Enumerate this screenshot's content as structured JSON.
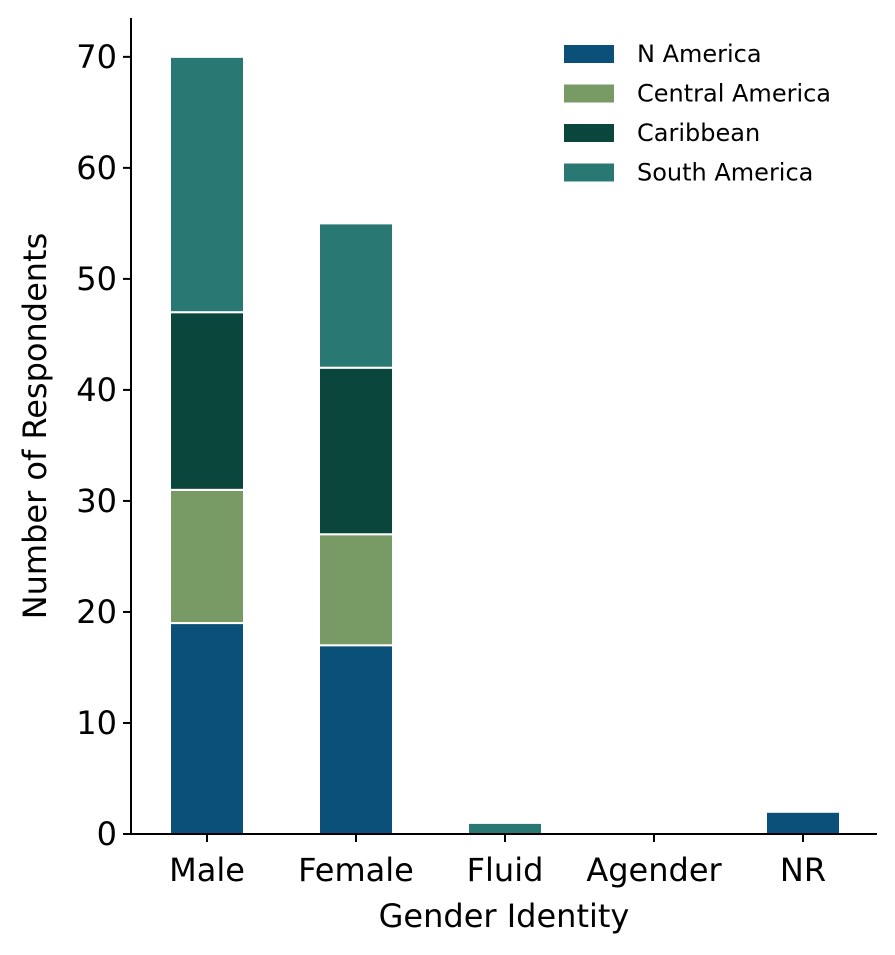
{
  "chart_data": {
    "type": "bar",
    "stacked": true,
    "xlabel": "Gender Identity",
    "ylabel": "Number of Respondents",
    "categories": [
      "Male",
      "Female",
      "Fluid",
      "Agender",
      "NR"
    ],
    "ylim": [
      0,
      73.5
    ],
    "yticks": [
      0,
      10,
      20,
      30,
      40,
      50,
      60,
      70
    ],
    "grid": false,
    "legend_position": "top-right",
    "series": [
      {
        "name": "N America",
        "color": "#0a5078",
        "values": [
          19,
          17,
          0,
          0,
          2
        ]
      },
      {
        "name": "Central America",
        "color": "#789a64",
        "values": [
          12,
          10,
          0,
          0,
          0
        ]
      },
      {
        "name": "Caribbean",
        "color": "#0a463c",
        "values": [
          16,
          15,
          0,
          0,
          0
        ]
      },
      {
        "name": "South America",
        "color": "#2a7874",
        "values": [
          23,
          13,
          1,
          0,
          0
        ]
      }
    ]
  }
}
